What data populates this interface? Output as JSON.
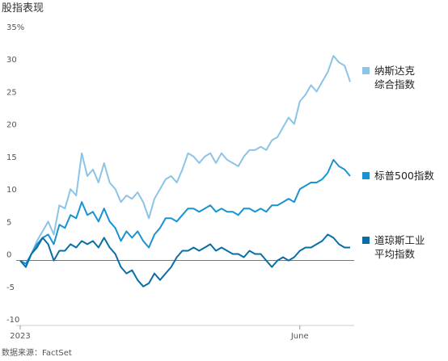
{
  "chart_data": {
    "type": "line",
    "title": "股指表现",
    "source": "数据来源：FactSet",
    "categories": [
      "2023",
      null,
      null,
      null,
      null,
      null,
      null,
      null,
      null,
      null,
      null,
      null,
      null,
      null,
      null,
      null,
      null,
      null,
      null,
      null,
      null,
      null,
      null,
      null,
      null,
      null,
      null,
      null,
      null,
      null,
      null,
      null,
      null,
      null,
      null,
      null,
      null,
      null,
      null,
      null,
      null,
      null,
      null,
      null,
      null,
      null,
      null,
      null,
      null,
      null,
      "June",
      null,
      null,
      null,
      null,
      null,
      null,
      null,
      null,
      null
    ],
    "series": [
      {
        "name": "纳斯达克\n综合指数",
        "color": "#8cc4e6",
        "values": [
          0,
          -1,
          1,
          3,
          4.5,
          6,
          4,
          8.5,
          8,
          11,
          10,
          16.5,
          13,
          14,
          12,
          15,
          12,
          11,
          9,
          10,
          9.5,
          10.5,
          9,
          6.5,
          9.5,
          11,
          12.5,
          13,
          12,
          14,
          16.5,
          16,
          15,
          16,
          16.5,
          15,
          16.5,
          15.5,
          15,
          14.5,
          16,
          17,
          17,
          17.5,
          17,
          18.5,
          19,
          20.5,
          22,
          21,
          24.5,
          25.5,
          27,
          26,
          27.5,
          29,
          31.5,
          30.5,
          30,
          27.5
        ]
      },
      {
        "name": "标普500指数",
        "color": "#1a93d3",
        "values": [
          0,
          -0.5,
          1,
          2.5,
          3.5,
          4,
          2.5,
          5.5,
          5,
          7,
          6.5,
          9,
          7,
          7.5,
          6,
          8,
          6,
          5,
          3,
          4.5,
          3.5,
          4.5,
          3,
          2,
          4,
          5,
          6.5,
          6.5,
          6,
          7,
          8,
          8,
          7.5,
          8,
          8.5,
          7.5,
          8,
          7.5,
          7.5,
          7,
          8,
          8,
          7.5,
          8,
          7.5,
          8.5,
          8.5,
          9,
          9.5,
          9,
          11,
          11.5,
          12,
          12,
          12.5,
          13.5,
          15.5,
          14.5,
          14,
          13
        ]
      },
      {
        "name": "道琼斯工业\n平均指数",
        "color": "#0a6ea5",
        "values": [
          0,
          -1,
          1,
          2,
          3.5,
          2.5,
          0,
          1.5,
          1.5,
          2.5,
          2,
          3,
          2.5,
          3,
          2,
          3.5,
          2,
          1,
          -1,
          -2,
          -1.5,
          -3,
          -4,
          -3.5,
          -2,
          -3,
          -2,
          -1,
          0.5,
          1.5,
          1.5,
          2,
          1.5,
          2,
          2.5,
          1.5,
          2,
          1.5,
          1,
          1,
          0.5,
          1.5,
          1,
          1,
          0,
          -1,
          0,
          0.5,
          0,
          0.5,
          1.5,
          2,
          2,
          2.5,
          3,
          4,
          3.5,
          2.5,
          2,
          2
        ]
      }
    ],
    "ylim": [
      -10,
      35
    ],
    "yticks": [
      {
        "value": 35,
        "label": "35%"
      },
      30,
      25,
      20,
      15,
      10,
      5,
      0,
      -5,
      -10
    ]
  }
}
